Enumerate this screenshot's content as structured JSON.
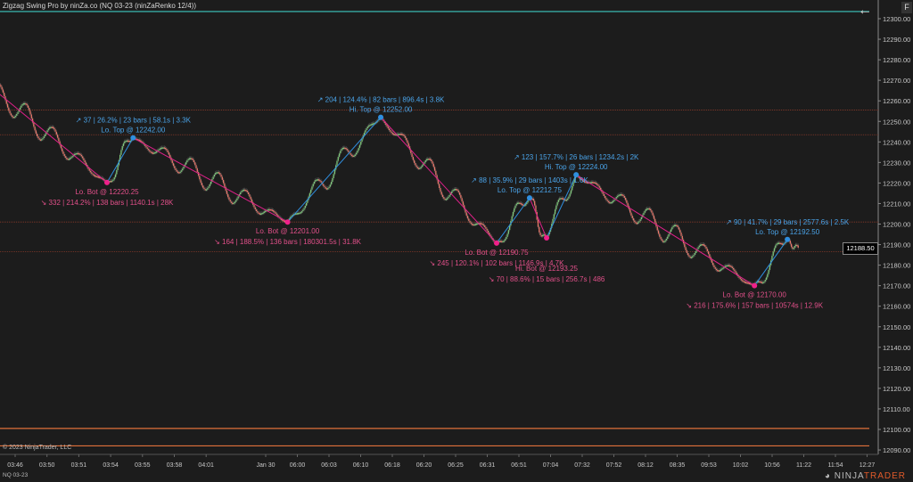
{
  "window": {
    "title": "Zigzag Swing Pro by ninZa.co (NQ 03-23 (ninZaRenko 12/4))",
    "copyright": "© 2023 NinjaTrader, LLC",
    "instrument": "NQ 03-23",
    "logo_text": "NINJATRADER",
    "back_icon": "arrow-left-icon",
    "f_button": "F"
  },
  "colors": {
    "background": "#1c1c1c",
    "up_brick": "#7ec87a",
    "down_brick": "#e8776a",
    "top_label": "#4aa3e8",
    "bottom_label": "#e2508a",
    "down_swing_line": "#e0208a",
    "up_swing_line": "#2f8fe0",
    "resistance_line": "#3cc8c0",
    "support_line": "#e0703a"
  },
  "chart_data": {
    "type": "renko-zigzag",
    "ylim": [
      12088,
      12309
    ],
    "y_ticks": [
      12300,
      12290,
      12280,
      12270,
      12260,
      12250,
      12240,
      12230,
      12220,
      12210,
      12200,
      12190,
      12180,
      12170,
      12160,
      12150,
      12140,
      12130,
      12120,
      12110,
      12100,
      12090
    ],
    "x_tick_labels": [
      "03:46",
      "03:50",
      "03:51",
      "03:54",
      "03:55",
      "03:58",
      "04:01",
      "Jan 30",
      "06:00",
      "06:03",
      "06:10",
      "06:18",
      "06:20",
      "06:25",
      "06:31",
      "06:51",
      "07:04",
      "07:32",
      "07:52",
      "08:12",
      "08:35",
      "09:53",
      "10:02",
      "10:56",
      "11:22",
      "11:54",
      "12:27"
    ],
    "last_price": "12188.50",
    "start_price": 12283,
    "pivots": [
      {
        "type": "bottom",
        "name": "Lo. Bot @ 12220.25",
        "price": 12220.25,
        "bars": 138,
        "stats": "↘ 332  |  214.2%  |  138 bars  |  1140.1s  |  28K"
      },
      {
        "type": "top",
        "name": "Lo. Top @ 12242.00",
        "price": 12242.0,
        "bars": 23,
        "stats": "↗ 37  |  26.2%  |  23 bars  |  58.1s  |  3.3K"
      },
      {
        "type": "bottom",
        "name": "Lo. Bot @ 12201.00",
        "price": 12201.0,
        "bars": 136,
        "stats": "↘ 164  |  188.5%  |  136 bars  |  180301.5s  |  31.8K"
      },
      {
        "type": "top",
        "name": "Hi. Top @ 12252.00",
        "price": 12252.0,
        "bars": 82,
        "stats": "↗ 204  |  124.4%  |  82 bars  |  896.4s  |  3.8K"
      },
      {
        "type": "bottom",
        "name": "Lo. Bot @ 12190.75",
        "price": 12190.75,
        "bars": 102,
        "stats": "↘ 245  |  120.1%  |  102 bars  |  1146.9s  |  4.7K"
      },
      {
        "type": "top",
        "name": "Lo. Top @ 12212.75",
        "price": 12212.75,
        "bars": 29,
        "stats": "↗ 88  |  35.9%  |  29 bars  |  1403s  |  1.6K"
      },
      {
        "type": "bottom",
        "name": "Hi. Bot @ 12193.25",
        "price": 12193.25,
        "bars": 15,
        "stats": "↘ 70  |  88.6%  |  15 bars  |  256.7s  |  486"
      },
      {
        "type": "top",
        "name": "Hi. Top @ 12224.00",
        "price": 12224.0,
        "bars": 26,
        "stats": "↗ 123  |  157.7%  |  26 bars  |  1234.2s  |  2K"
      },
      {
        "type": "bottom",
        "name": "Lo. Bot @ 12170.00",
        "price": 12170.0,
        "bars": 157,
        "stats": "↘ 216  |  175.6%  |  157 bars  |  10574s  |  12.9K"
      },
      {
        "type": "top",
        "name": "Lo. Top @ 12192.50",
        "price": 12192.5,
        "bars": 29,
        "stats": "↗ 90  |  41.7%  |  29 bars  |  2577.6s  |  2.5K"
      }
    ],
    "levels": [
      {
        "price": 12303.5,
        "style": "resistance"
      },
      {
        "price": 12100.5,
        "style": "support"
      },
      {
        "price": 12092.0,
        "style": "support"
      },
      {
        "price": 12255.5,
        "style": "dotted"
      },
      {
        "price": 12243.5,
        "style": "dotted"
      },
      {
        "price": 12201.0,
        "style": "dotted"
      },
      {
        "price": 12186.5,
        "style": "dotted"
      }
    ]
  }
}
